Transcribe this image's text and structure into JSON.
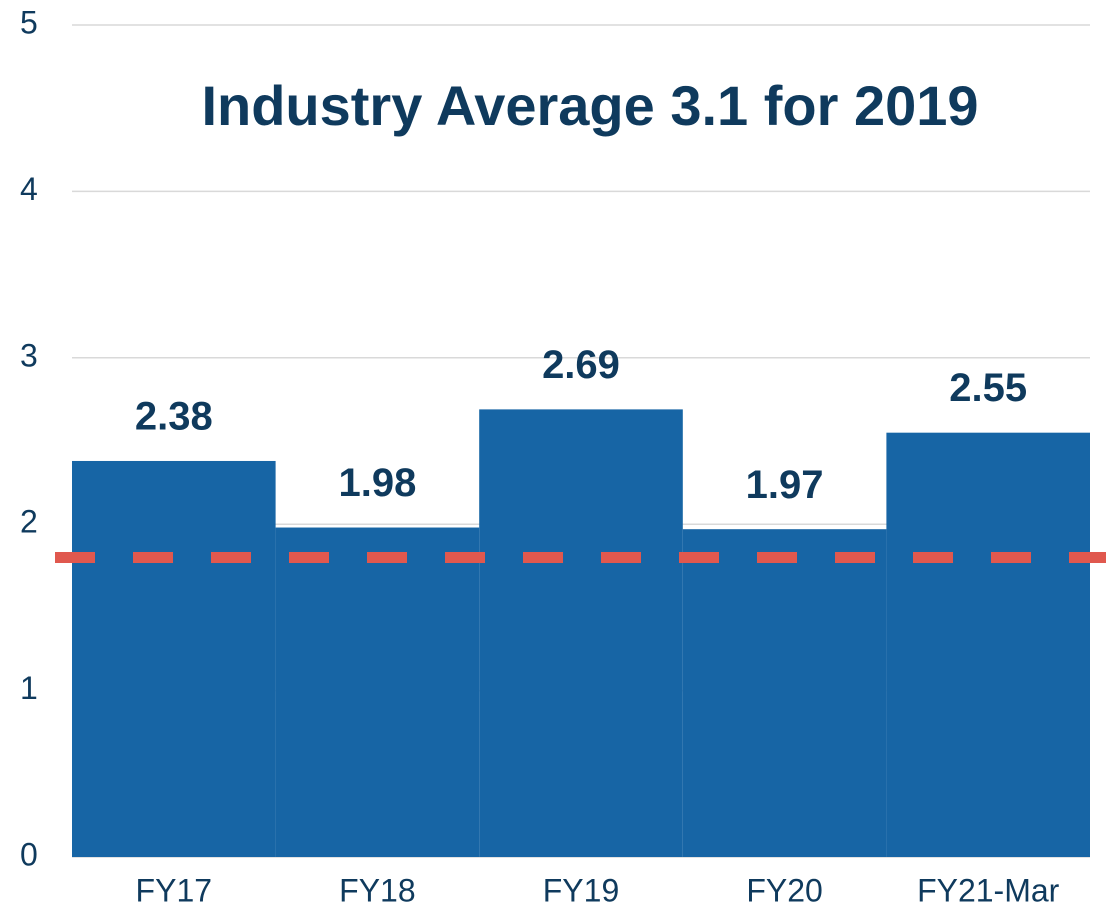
{
  "chart_data": {
    "type": "bar",
    "title": "Industry Average 3.1 for 2019",
    "categories": [
      "FY17",
      "FY18",
      "FY19",
      "FY20",
      "FY21-Mar"
    ],
    "values": [
      2.38,
      1.98,
      2.69,
      1.97,
      2.55
    ],
    "color": "#1765a5",
    "ylim": [
      0,
      5
    ],
    "yticks": [
      0,
      1,
      2,
      3,
      4,
      5
    ],
    "grid": true,
    "reference_line": {
      "value": 1.8,
      "color": "#e0584e"
    }
  }
}
